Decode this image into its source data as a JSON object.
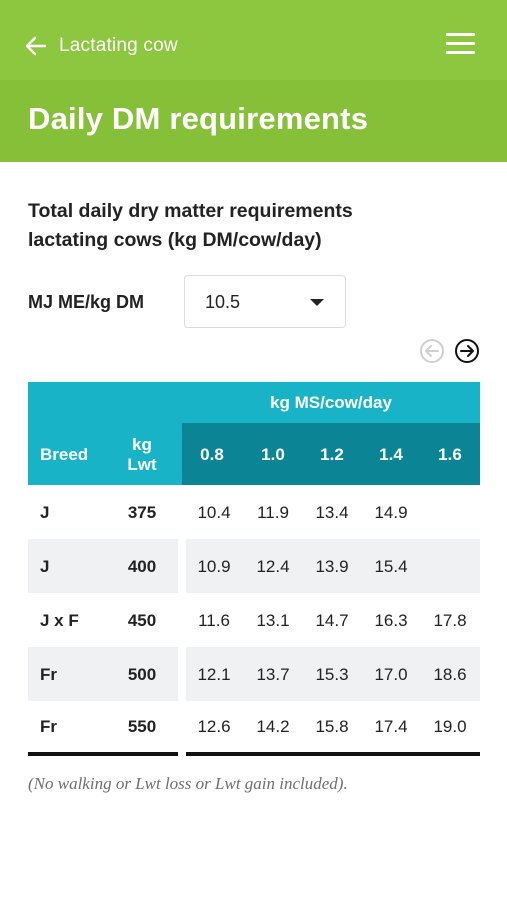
{
  "topbar": {
    "back_label": "Lactating cow",
    "back_icon": "arrow-left-icon",
    "menu_icon": "hamburger-menu-icon"
  },
  "header": {
    "title": "Daily DM requirements"
  },
  "content": {
    "subtitle_line1": "Total daily dry matter requirements",
    "subtitle_line2": "lactating cows (kg DM/cow/day)",
    "me_label": "MJ ME/kg DM",
    "me_selected": "10.5",
    "nav": {
      "prev_icon": "circle-arrow-left-icon",
      "next_icon": "circle-arrow-right-icon",
      "prev_enabled": false,
      "next_enabled": true
    }
  },
  "table": {
    "group_header": "kg MS/cow/day",
    "col_breed": "Breed",
    "col_lwt_line1": "kg",
    "col_lwt_line2": "Lwt",
    "ms_cols": [
      "0.8",
      "1.0",
      "1.2",
      "1.4",
      "1.6"
    ],
    "rows": [
      {
        "breed": "J",
        "lwt": "375",
        "values": [
          "10.4",
          "11.9",
          "13.4",
          "14.9",
          ""
        ]
      },
      {
        "breed": "J",
        "lwt": "400",
        "values": [
          "10.9",
          "12.4",
          "13.9",
          "15.4",
          ""
        ]
      },
      {
        "breed": "J x F",
        "lwt": "450",
        "values": [
          "11.6",
          "13.1",
          "14.7",
          "16.3",
          "17.8"
        ]
      },
      {
        "breed": "Fr",
        "lwt": "500",
        "values": [
          "12.1",
          "13.7",
          "15.3",
          "17.0",
          "18.6"
        ]
      },
      {
        "breed": "Fr",
        "lwt": "550",
        "values": [
          "12.6",
          "14.2",
          "15.8",
          "17.4",
          "19.0"
        ]
      }
    ]
  },
  "footnote": "(No walking or Lwt loss or Lwt gain included).",
  "colors": {
    "green_top": "#8dc63f",
    "green_title": "#86bf38",
    "teal_light": "#19b3c8",
    "teal_dark": "#0b8596",
    "row_stripe": "#f0f1f3"
  }
}
